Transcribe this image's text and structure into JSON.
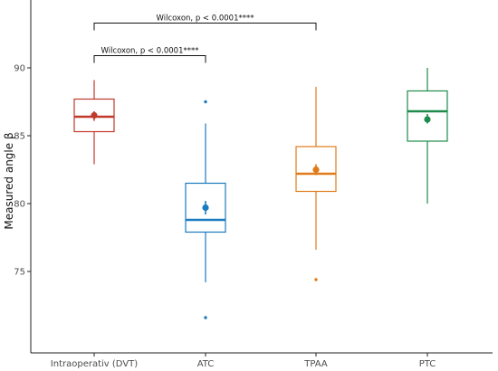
{
  "chart_data": {
    "type": "box",
    "title": "",
    "xlabel": "",
    "ylabel": "Measured angle β",
    "ylim": [
      69,
      95
    ],
    "yticks": [
      75,
      80,
      85,
      90
    ],
    "grid": false,
    "legend": "none",
    "categories": [
      "Intraoperativ (DVT)",
      "ATC",
      "TPAA",
      "PTC"
    ],
    "colors": [
      "#c0392b",
      "#1a7bbf",
      "#e07b1a",
      "#1e8a4c"
    ],
    "boxes": [
      {
        "category": "Intraoperativ (DVT)",
        "whisker_low": 82.9,
        "q1": 85.3,
        "median": 86.4,
        "q3": 87.7,
        "whisker_high": 89.1,
        "mean": 86.5,
        "mean_ci": [
          86.1,
          86.8
        ],
        "outliers": []
      },
      {
        "category": "ATC",
        "whisker_low": 74.2,
        "q1": 77.9,
        "median": 78.8,
        "q3": 81.5,
        "whisker_high": 85.9,
        "mean": 79.7,
        "mean_ci": [
          79.2,
          80.2
        ],
        "outliers": [
          87.5,
          71.6
        ]
      },
      {
        "category": "TPAA",
        "whisker_low": 76.6,
        "q1": 80.9,
        "median": 82.2,
        "q3": 84.2,
        "whisker_high": 88.6,
        "mean": 82.5,
        "mean_ci": [
          82.1,
          82.9
        ],
        "outliers": [
          74.4
        ]
      },
      {
        "category": "PTC",
        "whisker_low": 80.0,
        "q1": 84.6,
        "median": 86.8,
        "q3": 88.3,
        "whisker_high": 90.0,
        "mean": 86.2,
        "mean_ci": [
          85.9,
          86.6
        ],
        "outliers": []
      }
    ],
    "annotations": [
      {
        "from": "Intraoperativ (DVT)",
        "to": "TPAA",
        "label": "Wilcoxon, p < 0.0001****",
        "y": 93.3
      },
      {
        "from": "Intraoperativ (DVT)",
        "to": "ATC",
        "label": "Wilcoxon, p < 0.0001****",
        "y": 90.9
      }
    ]
  }
}
